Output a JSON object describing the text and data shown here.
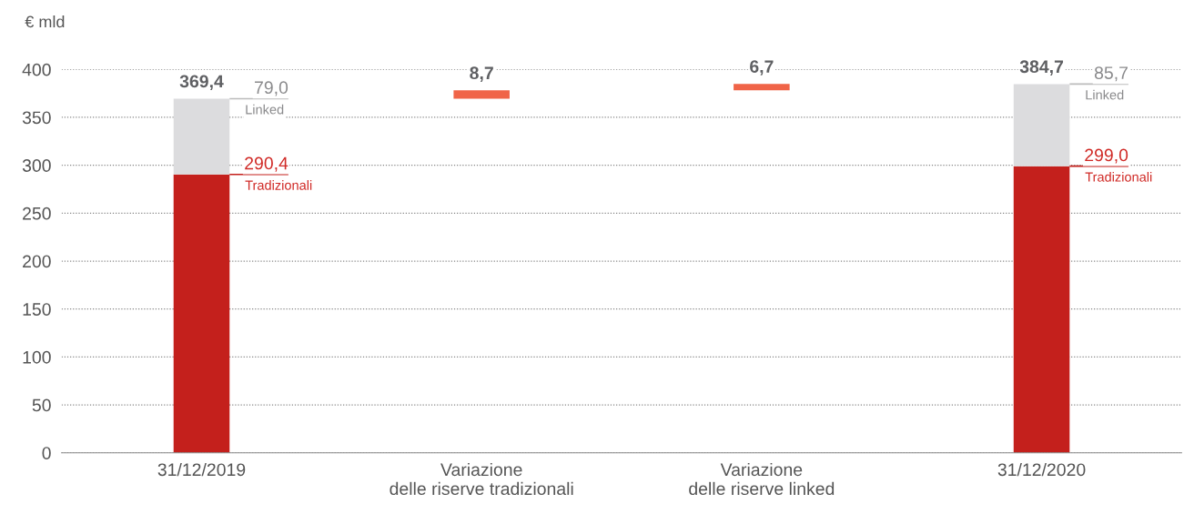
{
  "chart_data": {
    "type": "bar",
    "stacked": true,
    "ylabel": "€ mld",
    "categories": [
      "31/12/2019",
      "Variazione\ndelle riserve tradizionali",
      "Variazione\ndelle riserve linked",
      "31/12/2020"
    ],
    "series": [
      {
        "name": "Tradizionali",
        "color": "#c4201c",
        "values": [
          290.4,
          null,
          null,
          299.0
        ],
        "value_labels": [
          "290,4",
          null,
          null,
          "299,0"
        ]
      },
      {
        "name": "Linked",
        "color": "#dcdcde",
        "values": [
          79.0,
          null,
          null,
          85.7
        ],
        "value_labels": [
          "79,0",
          null,
          null,
          "85,7"
        ]
      },
      {
        "color": "#f06448",
        "values": [
          null,
          8.7,
          6.7,
          null
        ],
        "base": [
          null,
          369.4,
          378.1,
          null
        ]
      }
    ],
    "totals": [
      "369,4",
      "8,7",
      "6,7",
      "384,7"
    ],
    "ylim": [
      0,
      400
    ],
    "yticks": [
      0,
      50,
      100,
      150,
      200,
      250,
      300,
      350,
      400
    ],
    "grid": "y",
    "legend": false
  }
}
